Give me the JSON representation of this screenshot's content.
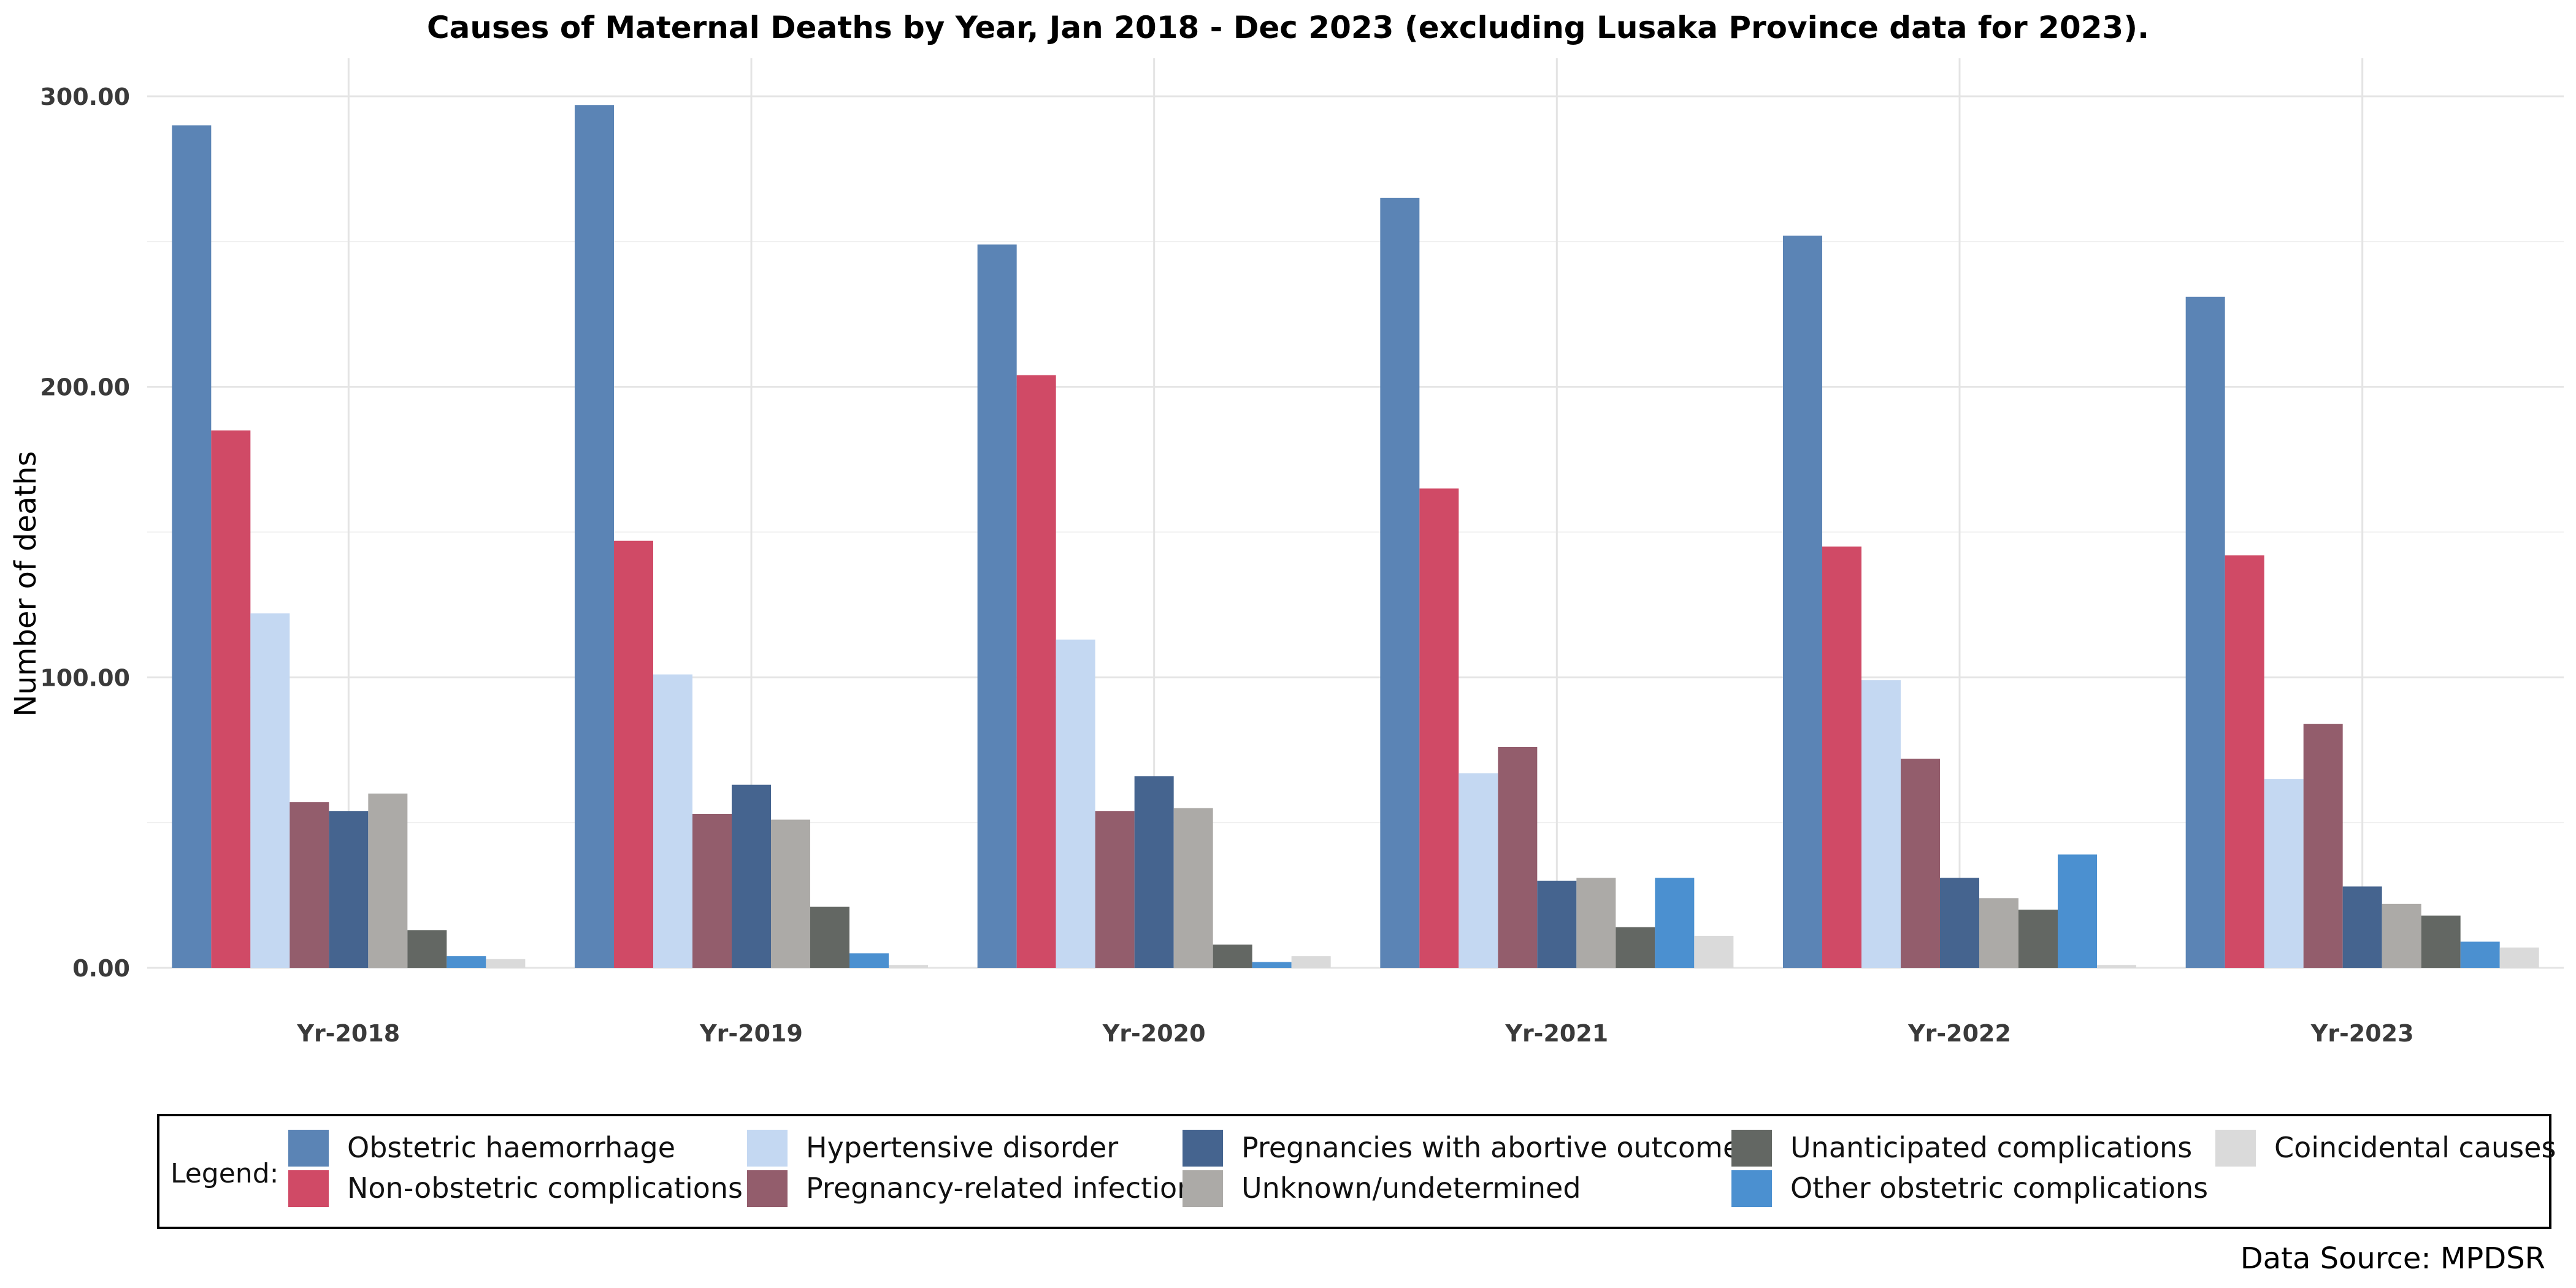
{
  "chart_data": {
    "type": "bar",
    "title": "Causes of Maternal Deaths by Year, Jan 2018 - Dec 2023 (excluding Lusaka Province data for 2023).",
    "xlabel": "",
    "ylabel": "Number of deaths",
    "ylim": [
      0,
      310
    ],
    "yticks": [
      "0.00",
      "100.00",
      "200.00",
      "300.00"
    ],
    "ytick_values": [
      0,
      100,
      200,
      300
    ],
    "grid": true,
    "legend_title": "Legend:",
    "legend_position": "bottom",
    "source": "Data Source: MPDSR",
    "categories": [
      "Yr-2018",
      "Yr-2019",
      "Yr-2020",
      "Yr-2021",
      "Yr-2022",
      "Yr-2023"
    ],
    "series": [
      {
        "name": "Obstetric haemorrhage",
        "color": "#5b84b5",
        "values": [
          290,
          297,
          249,
          265,
          252,
          231
        ]
      },
      {
        "name": "Non-obstetric complications",
        "color": "#d04a66",
        "values": [
          185,
          147,
          204,
          165,
          145,
          142
        ]
      },
      {
        "name": "Hypertensive disorder",
        "color": "#c4d8f2",
        "values": [
          122,
          101,
          113,
          67,
          99,
          65
        ]
      },
      {
        "name": "Pregnancy-related infection",
        "color": "#935d6c",
        "values": [
          57,
          53,
          54,
          76,
          72,
          84
        ]
      },
      {
        "name": "Pregnancies with abortive outcome",
        "color": "#45648f",
        "values": [
          54,
          63,
          66,
          30,
          31,
          28
        ]
      },
      {
        "name": "Unknown/undetermined",
        "color": "#acaaa7",
        "values": [
          60,
          51,
          55,
          31,
          24,
          22
        ]
      },
      {
        "name": "Unanticipated complications",
        "color": "#636763",
        "values": [
          13,
          21,
          8,
          14,
          20,
          18
        ]
      },
      {
        "name": "Other obstetric complications",
        "color": "#4b90d0",
        "values": [
          4,
          5,
          2,
          31,
          39,
          9
        ]
      },
      {
        "name": "Coincidental causes",
        "color": "#dadada",
        "values": [
          3,
          1,
          4,
          11,
          1,
          7
        ]
      }
    ]
  }
}
